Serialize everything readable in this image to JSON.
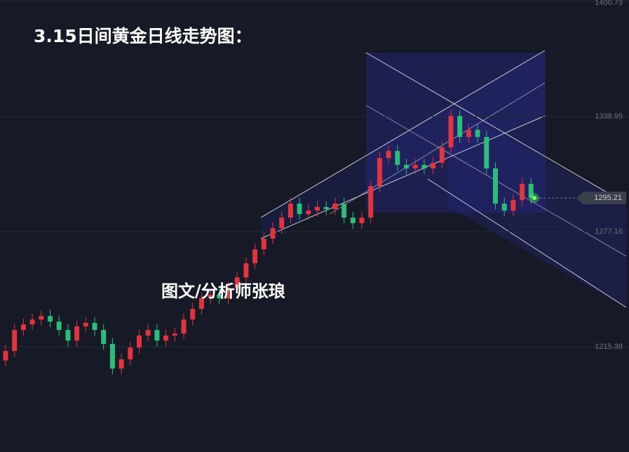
{
  "chart_data": {
    "type": "candlestick",
    "title": "3.15日间黄金日线走势图：",
    "watermark": "图文/分析师张琅",
    "ylim": [
      1158.9,
      1401.5
    ],
    "yticks": [
      1400.73,
      1338.95,
      1277.16,
      1215.38
    ],
    "grid": true,
    "up_color": "#e0343f",
    "down_color": "#2dbd7a",
    "last_price": 1295.21,
    "open": [
      1208.0,
      1213.1,
      1224.4,
      1227.4,
      1230.0,
      1231.9,
      1228.9,
      1224.4,
      1218.7,
      1226.3,
      1228.2,
      1224.4,
      1216.9,
      1203.7,
      1208.6,
      1215.0,
      1221.4,
      1224.4,
      1218.7,
      1221.4,
      1222.5,
      1230.0,
      1235.7,
      1241.4,
      1243.3,
      1241.4,
      1247.0,
      1252.6,
      1260.2,
      1267.7,
      1273.4,
      1279.0,
      1284.7,
      1292.2,
      1286.6,
      1288.5,
      1290.4,
      1289.2,
      1292.2,
      1284.7,
      1281.7,
      1284.7,
      1301.6,
      1316.7,
      1320.5,
      1313.0,
      1311.1,
      1313.0,
      1311.1,
      1314.1,
      1322.4,
      1339.3,
      1328.0,
      1331.8,
      1328.0,
      1311.1,
      1292.2,
      1288.5,
      1294.1,
      1302.8
    ],
    "high": [
      1216.3,
      1227.6,
      1230.6,
      1233.2,
      1235.1,
      1235.1,
      1232.1,
      1227.6,
      1229.5,
      1231.4,
      1231.4,
      1227.6,
      1220.1,
      1211.8,
      1218.2,
      1224.6,
      1227.6,
      1227.6,
      1224.6,
      1225.7,
      1233.2,
      1238.9,
      1244.6,
      1246.5,
      1246.5,
      1250.2,
      1255.8,
      1263.4,
      1270.9,
      1276.6,
      1282.2,
      1287.9,
      1295.4,
      1295.4,
      1291.7,
      1293.6,
      1293.6,
      1295.4,
      1295.4,
      1287.9,
      1287.9,
      1304.8,
      1319.9,
      1323.7,
      1323.7,
      1316.2,
      1316.2,
      1316.2,
      1317.3,
      1325.6,
      1342.5,
      1342.5,
      1335.0,
      1335.0,
      1331.2,
      1314.3,
      1295.4,
      1297.3,
      1306.0,
      1306.0
    ],
    "low": [
      1204.9,
      1210.0,
      1221.3,
      1224.3,
      1226.9,
      1225.8,
      1221.3,
      1215.6,
      1215.6,
      1223.2,
      1221.3,
      1213.8,
      1200.6,
      1200.6,
      1205.5,
      1211.9,
      1218.3,
      1215.6,
      1215.6,
      1218.3,
      1219.4,
      1226.9,
      1232.6,
      1238.3,
      1238.3,
      1238.3,
      1243.9,
      1249.5,
      1257.1,
      1264.6,
      1270.3,
      1275.9,
      1281.6,
      1283.5,
      1283.5,
      1285.4,
      1286.1,
      1286.1,
      1281.6,
      1278.6,
      1278.6,
      1281.6,
      1298.5,
      1313.6,
      1309.9,
      1308.0,
      1308.0,
      1308.0,
      1308.0,
      1311.0,
      1319.3,
      1324.9,
      1324.9,
      1324.9,
      1308.0,
      1289.1,
      1285.4,
      1285.4,
      1291.0,
      1292.1
    ],
    "close": [
      1213.1,
      1224.4,
      1227.4,
      1230.0,
      1231.9,
      1228.9,
      1224.4,
      1218.7,
      1226.3,
      1228.2,
      1224.4,
      1216.9,
      1203.7,
      1208.6,
      1215.0,
      1221.4,
      1224.4,
      1218.7,
      1221.4,
      1222.5,
      1230.0,
      1235.7,
      1241.4,
      1243.3,
      1241.4,
      1247.0,
      1252.6,
      1260.2,
      1267.7,
      1273.4,
      1279.0,
      1284.7,
      1292.2,
      1286.6,
      1288.5,
      1290.4,
      1289.2,
      1292.2,
      1284.7,
      1281.7,
      1284.7,
      1301.6,
      1316.7,
      1320.5,
      1313.0,
      1311.1,
      1313.0,
      1311.1,
      1314.1,
      1322.4,
      1339.3,
      1328.0,
      1331.8,
      1328.0,
      1311.1,
      1292.2,
      1288.5,
      1294.1,
      1302.8,
      1295.21
    ]
  }
}
